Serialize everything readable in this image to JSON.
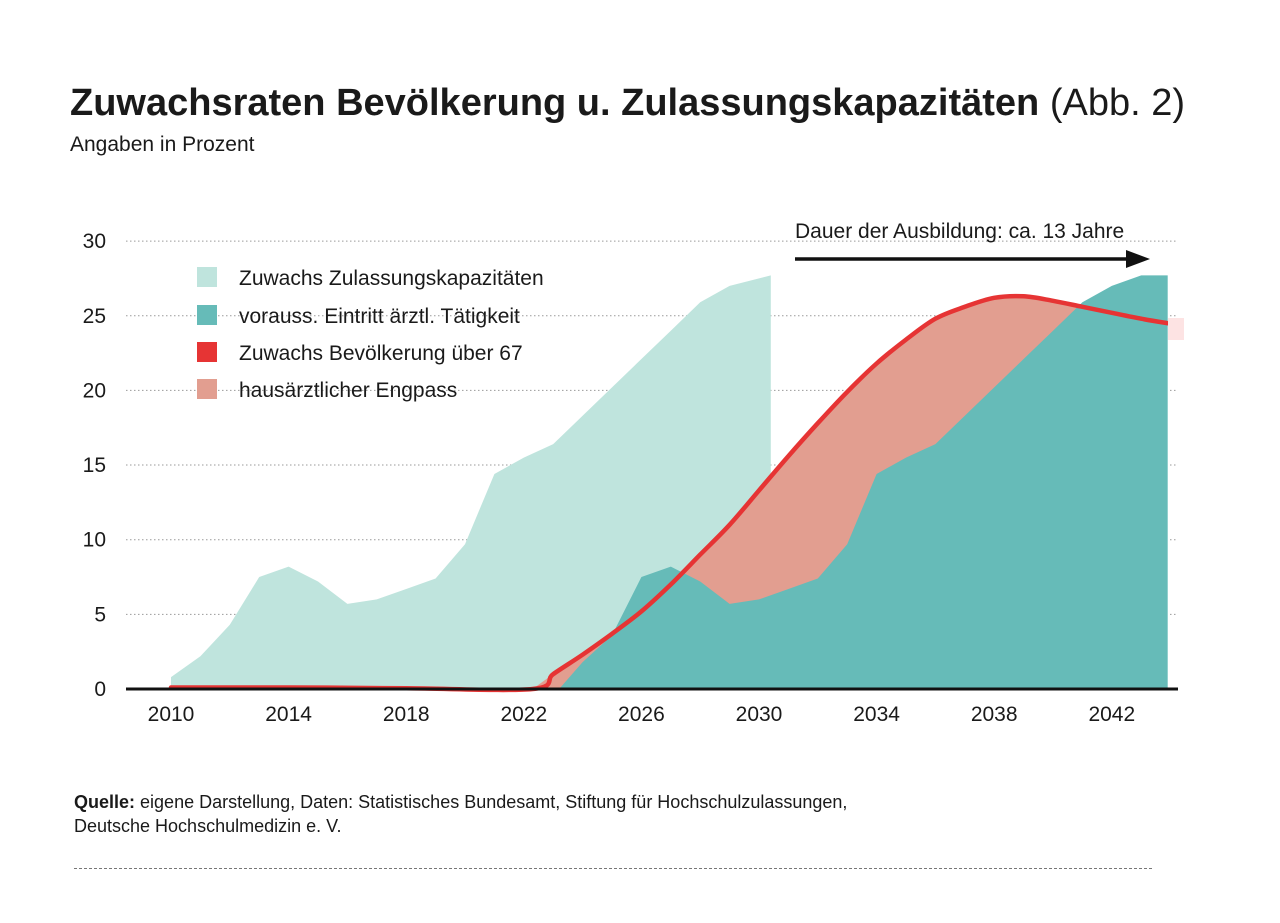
{
  "header": {
    "title": "Zuwachsraten Bevölkerung u. Zulassungskapazitäten",
    "title_suffix": "(Abb. 2)",
    "subtitle": "Angaben in Prozent"
  },
  "annotation": {
    "text": "Dauer der Ausbildung: ca. 13 Jahre"
  },
  "colors": {
    "zulassung": "#bfe4dd",
    "eintritt": "#66bbb8",
    "bevoelkerung": "#e63434",
    "engpass": "#e29e90",
    "grid": "#9a9a9a",
    "axis": "#111111"
  },
  "chart_data": {
    "type": "area",
    "title": "Zuwachsraten Bevölkerung u. Zulassungskapazitäten",
    "xlabel": "",
    "ylabel": "Angaben in Prozent",
    "xlim": [
      2009,
      2045
    ],
    "ylim": [
      0,
      30
    ],
    "grid": true,
    "x_ticks": [
      2010,
      2014,
      2018,
      2022,
      2026,
      2030,
      2034,
      2038,
      2042
    ],
    "y_ticks": [
      0,
      5,
      10,
      15,
      20,
      25,
      30
    ],
    "legend_position": "top-left",
    "series": [
      {
        "name": "Zuwachs Zulassungskapazitäten",
        "type": "area",
        "x": [
          2010,
          2011,
          2012,
          2013,
          2014,
          2015,
          2016,
          2017,
          2018,
          2019,
          2020,
          2021,
          2022,
          2023,
          2024,
          2025,
          2026,
          2027,
          2028,
          2029,
          2030.4
        ],
        "values": [
          0.8,
          2.2,
          4.3,
          7.5,
          8.2,
          7.2,
          5.7,
          6.0,
          6.7,
          7.4,
          9.7,
          14.4,
          15.5,
          16.4,
          18.3,
          20.2,
          22.1,
          24.0,
          25.9,
          27.0,
          27.7
        ]
      },
      {
        "name": "vorauss. Eintritt ärztl. Tätigkeit",
        "type": "area",
        "x": [
          2023.2,
          2024,
          2025,
          2026,
          2027,
          2028,
          2029,
          2030,
          2031,
          2032,
          2033,
          2034,
          2035,
          2036,
          2037,
          2038,
          2039,
          2040,
          2041,
          2042,
          2043,
          2043.9
        ],
        "values": [
          0,
          1.8,
          3.6,
          7.5,
          8.2,
          7.2,
          5.7,
          6.0,
          6.7,
          7.4,
          9.7,
          14.4,
          15.5,
          16.4,
          18.3,
          20.2,
          22.1,
          24.0,
          25.9,
          27.0,
          27.7,
          27.7
        ]
      },
      {
        "name": "Zuwachs Bevölkerung über 67",
        "type": "line",
        "x": [
          2010,
          2014,
          2018,
          2022.3,
          2023,
          2024,
          2025,
          2026,
          2027,
          2028,
          2029,
          2030,
          2031,
          2032,
          2033,
          2034,
          2035,
          2036,
          2037,
          2038,
          2039,
          2040,
          2041,
          2042,
          2043,
          2043.9
        ],
        "values": [
          0.1,
          0.1,
          0.05,
          0,
          1.0,
          2.3,
          3.7,
          5.2,
          7.0,
          9.0,
          11.0,
          13.3,
          15.6,
          17.8,
          19.9,
          21.8,
          23.4,
          24.8,
          25.6,
          26.2,
          26.3,
          26.0,
          25.6,
          25.2,
          24.8,
          24.5
        ]
      },
      {
        "name": "hausärztlicher Engpass",
        "type": "band",
        "description": "Fläche zwischen Zuwachs Bevölkerung über 67 und vorauss. Eintritt ärztl. Tätigkeit"
      }
    ]
  }
}
